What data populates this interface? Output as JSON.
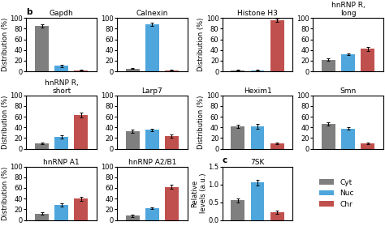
{
  "chart_data": [
    {
      "type": "bar",
      "title": "Gapdh",
      "categories": [
        null
      ],
      "tick_labels": "y",
      "ylabel": "Distribution (%)",
      "annotations": [
        "b"
      ],
      "ylim": [
        0,
        100
      ],
      "yticks": [
        0,
        20,
        40,
        60,
        80,
        100
      ],
      "series": [
        {
          "name": "Cyt",
          "color": "#7f7f7f",
          "values": [
            85
          ],
          "errors": [
            3
          ]
        },
        {
          "name": "Nuc",
          "color": "#4ea6dc",
          "values": [
            10
          ],
          "errors": [
            2
          ]
        },
        {
          "name": "Chr",
          "color": "#c0504d",
          "values": [
            2
          ],
          "errors": [
            1
          ]
        }
      ]
    },
    {
      "type": "bar",
      "title": "Calnexin",
      "categories": [
        null
      ],
      "tick_labels": "y",
      "ylim": [
        0,
        100
      ],
      "yticks": [
        0,
        20,
        40,
        60,
        80,
        100
      ],
      "series": [
        {
          "name": "Cyt",
          "color": "#7f7f7f",
          "values": [
            5
          ],
          "errors": [
            1
          ]
        },
        {
          "name": "Nuc",
          "color": "#4ea6dc",
          "values": [
            88
          ],
          "errors": [
            3
          ]
        },
        {
          "name": "Chr",
          "color": "#c0504d",
          "values": [
            2
          ],
          "errors": [
            1
          ]
        }
      ]
    },
    {
      "type": "bar",
      "title": "Histone H3",
      "categories": [
        null
      ],
      "tick_labels": "y",
      "ylabel": "Distribution (%)",
      "ylim": [
        0,
        100
      ],
      "yticks": [
        0,
        20,
        40,
        60,
        80,
        100
      ],
      "series": [
        {
          "name": "Cyt",
          "color": "#7f7f7f",
          "values": [
            2
          ],
          "errors": [
            1
          ]
        },
        {
          "name": "Nuc",
          "color": "#4ea6dc",
          "values": [
            2
          ],
          "errors": [
            1
          ]
        },
        {
          "name": "Chr",
          "color": "#c0504d",
          "values": [
            96
          ],
          "errors": [
            3
          ]
        }
      ]
    },
    {
      "type": "bar",
      "title": "hnRNP R,\nlong",
      "categories": [
        null
      ],
      "tick_labels": "y",
      "ylim": [
        0,
        100
      ],
      "yticks": [
        0,
        20,
        40,
        60,
        80,
        100
      ],
      "series": [
        {
          "name": "Cyt",
          "color": "#7f7f7f",
          "values": [
            22
          ],
          "errors": [
            2
          ]
        },
        {
          "name": "Nuc",
          "color": "#4ea6dc",
          "values": [
            32
          ],
          "errors": [
            2
          ]
        },
        {
          "name": "Chr",
          "color": "#c0504d",
          "values": [
            42
          ],
          "errors": [
            4
          ]
        }
      ]
    },
    {
      "type": "bar",
      "title": "hnRNP R,\nshort",
      "categories": [
        null
      ],
      "tick_labels": "y",
      "ylabel": "Distribution (%)",
      "ylim": [
        0,
        100
      ],
      "yticks": [
        0,
        20,
        40,
        60,
        80,
        100
      ],
      "series": [
        {
          "name": "Cyt",
          "color": "#7f7f7f",
          "values": [
            10
          ],
          "errors": [
            2
          ]
        },
        {
          "name": "Nuc",
          "color": "#4ea6dc",
          "values": [
            22
          ],
          "errors": [
            3
          ]
        },
        {
          "name": "Chr",
          "color": "#c0504d",
          "values": [
            63
          ],
          "errors": [
            4
          ]
        }
      ]
    },
    {
      "type": "bar",
      "title": "Larp7",
      "categories": [
        null
      ],
      "tick_labels": "y",
      "ylim": [
        0,
        100
      ],
      "yticks": [
        0,
        20,
        40,
        60,
        80,
        100
      ],
      "series": [
        {
          "name": "Cyt",
          "color": "#7f7f7f",
          "values": [
            33
          ],
          "errors": [
            3
          ]
        },
        {
          "name": "Nuc",
          "color": "#4ea6dc",
          "values": [
            35
          ],
          "errors": [
            3
          ]
        },
        {
          "name": "Chr",
          "color": "#c0504d",
          "values": [
            23
          ],
          "errors": [
            3
          ]
        }
      ]
    },
    {
      "type": "bar",
      "title": "Hexim1",
      "categories": [
        null
      ],
      "tick_labels": "y",
      "ylabel": "Distribution (%)",
      "ylim": [
        0,
        100
      ],
      "yticks": [
        0,
        20,
        40,
        60,
        80,
        100
      ],
      "series": [
        {
          "name": "Cyt",
          "color": "#7f7f7f",
          "values": [
            42
          ],
          "errors": [
            3
          ]
        },
        {
          "name": "Nuc",
          "color": "#4ea6dc",
          "values": [
            42
          ],
          "errors": [
            4
          ]
        },
        {
          "name": "Chr",
          "color": "#c0504d",
          "values": [
            10
          ],
          "errors": [
            2
          ]
        }
      ]
    },
    {
      "type": "bar",
      "title": "Smn",
      "categories": [
        null
      ],
      "tick_labels": "y",
      "ylim": [
        0,
        100
      ],
      "yticks": [
        0,
        20,
        40,
        60,
        80,
        100
      ],
      "series": [
        {
          "name": "Cyt",
          "color": "#7f7f7f",
          "values": [
            47
          ],
          "errors": [
            3
          ]
        },
        {
          "name": "Nuc",
          "color": "#4ea6dc",
          "values": [
            38
          ],
          "errors": [
            3
          ]
        },
        {
          "name": "Chr",
          "color": "#c0504d",
          "values": [
            10
          ],
          "errors": [
            2
          ]
        }
      ]
    },
    {
      "type": "bar",
      "title": "hnRNP A1",
      "categories": [
        null
      ],
      "tick_labels": "y",
      "ylabel": "Distribution (%)",
      "ylim": [
        0,
        100
      ],
      "yticks": [
        0,
        20,
        40,
        60,
        80,
        100
      ],
      "series": [
        {
          "name": "Cyt",
          "color": "#7f7f7f",
          "values": [
            12
          ],
          "errors": [
            2
          ]
        },
        {
          "name": "Nuc",
          "color": "#4ea6dc",
          "values": [
            28
          ],
          "errors": [
            3
          ]
        },
        {
          "name": "Chr",
          "color": "#c0504d",
          "values": [
            40
          ],
          "errors": [
            4
          ]
        }
      ]
    },
    {
      "type": "bar",
      "title": "hnRNP A2/B1",
      "categories": [
        null
      ],
      "tick_labels": "y",
      "ylim": [
        0,
        100
      ],
      "yticks": [
        0,
        20,
        40,
        60,
        80,
        100
      ],
      "series": [
        {
          "name": "Cyt",
          "color": "#7f7f7f",
          "values": [
            8
          ],
          "errors": [
            2
          ]
        },
        {
          "name": "Nuc",
          "color": "#4ea6dc",
          "values": [
            22
          ],
          "errors": [
            2
          ]
        },
        {
          "name": "Chr",
          "color": "#c0504d",
          "values": [
            62
          ],
          "errors": [
            4
          ]
        }
      ]
    },
    {
      "type": "bar",
      "title": "7SK",
      "categories": [
        null
      ],
      "tick_labels": "y",
      "ylabel": "Relative\nlevels (a.u.)",
      "annotations": [
        "c"
      ],
      "ylim": [
        0,
        1.5
      ],
      "yticks": [
        0.0,
        0.5,
        1.0,
        1.5
      ],
      "legend": "center left",
      "series": [
        {
          "name": "Cyt",
          "color": "#7f7f7f",
          "values": [
            0.55
          ],
          "errors": [
            0.06
          ]
        },
        {
          "name": "Nuc",
          "color": "#4ea6dc",
          "values": [
            1.05
          ],
          "errors": [
            0.08
          ]
        },
        {
          "name": "Chr",
          "color": "#c0504d",
          "values": [
            0.22
          ],
          "errors": [
            0.04
          ]
        }
      ]
    }
  ]
}
